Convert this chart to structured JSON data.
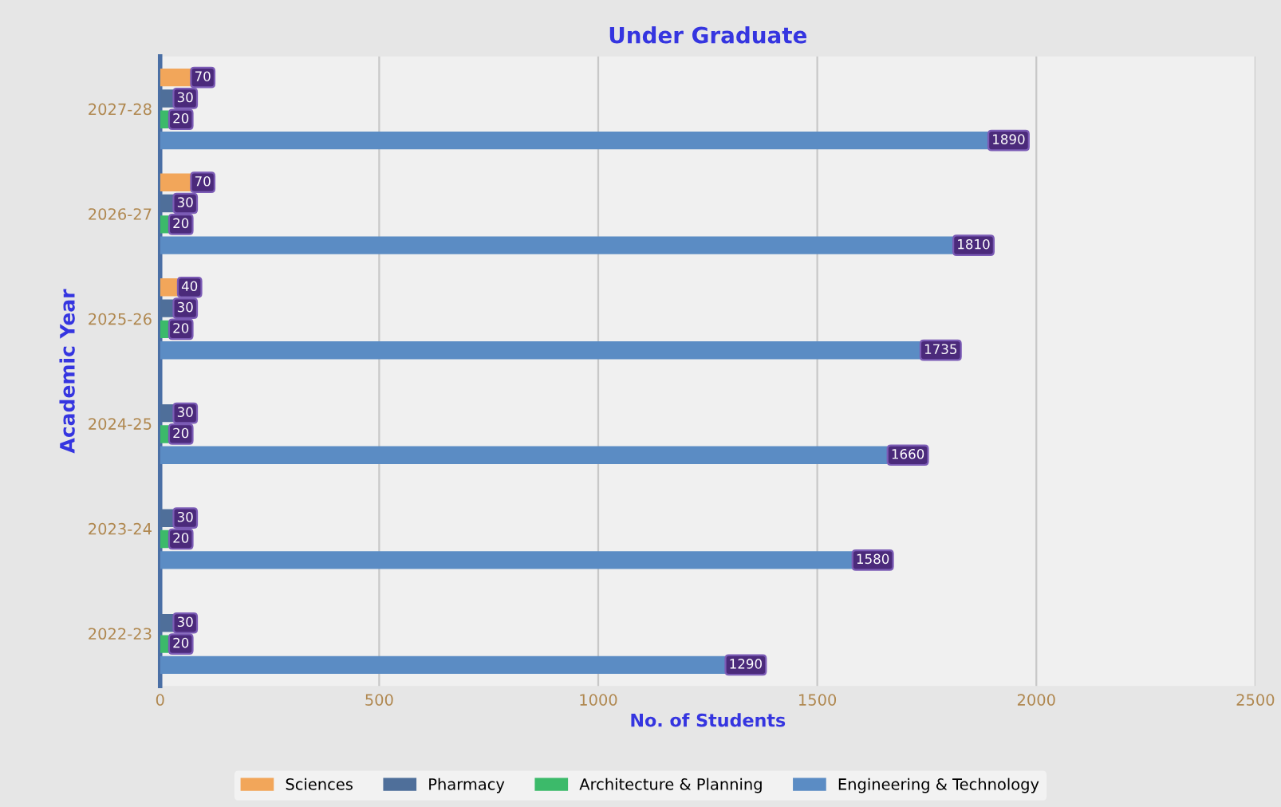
{
  "chart_data": {
    "type": "bar",
    "orientation": "horizontal",
    "title": "Under Graduate",
    "xlabel": "No. of Students",
    "ylabel": "Academic Year",
    "categories": [
      "2027-28",
      "2026-27",
      "2025-26",
      "2024-25",
      "2023-24",
      "2022-23"
    ],
    "series": [
      {
        "name": "Sciences",
        "color": "#f2a65a",
        "values": [
          70,
          70,
          40,
          null,
          null,
          null
        ]
      },
      {
        "name": "Pharmacy",
        "color": "#4f6f9a",
        "values": [
          30,
          30,
          30,
          30,
          30,
          30
        ]
      },
      {
        "name": "Architecture & Planning",
        "color": "#3cba6a",
        "values": [
          20,
          20,
          20,
          20,
          20,
          20
        ]
      },
      {
        "name": "Engineering & Technology",
        "color": "#5b8cc4",
        "values": [
          1890,
          1810,
          1735,
          1660,
          1580,
          1290
        ]
      }
    ],
    "xlim": [
      0,
      2500
    ],
    "xticks": [
      0,
      500,
      1000,
      1500,
      2000,
      2500
    ],
    "grid": "x",
    "legend": "bottom",
    "data_labels": true
  }
}
